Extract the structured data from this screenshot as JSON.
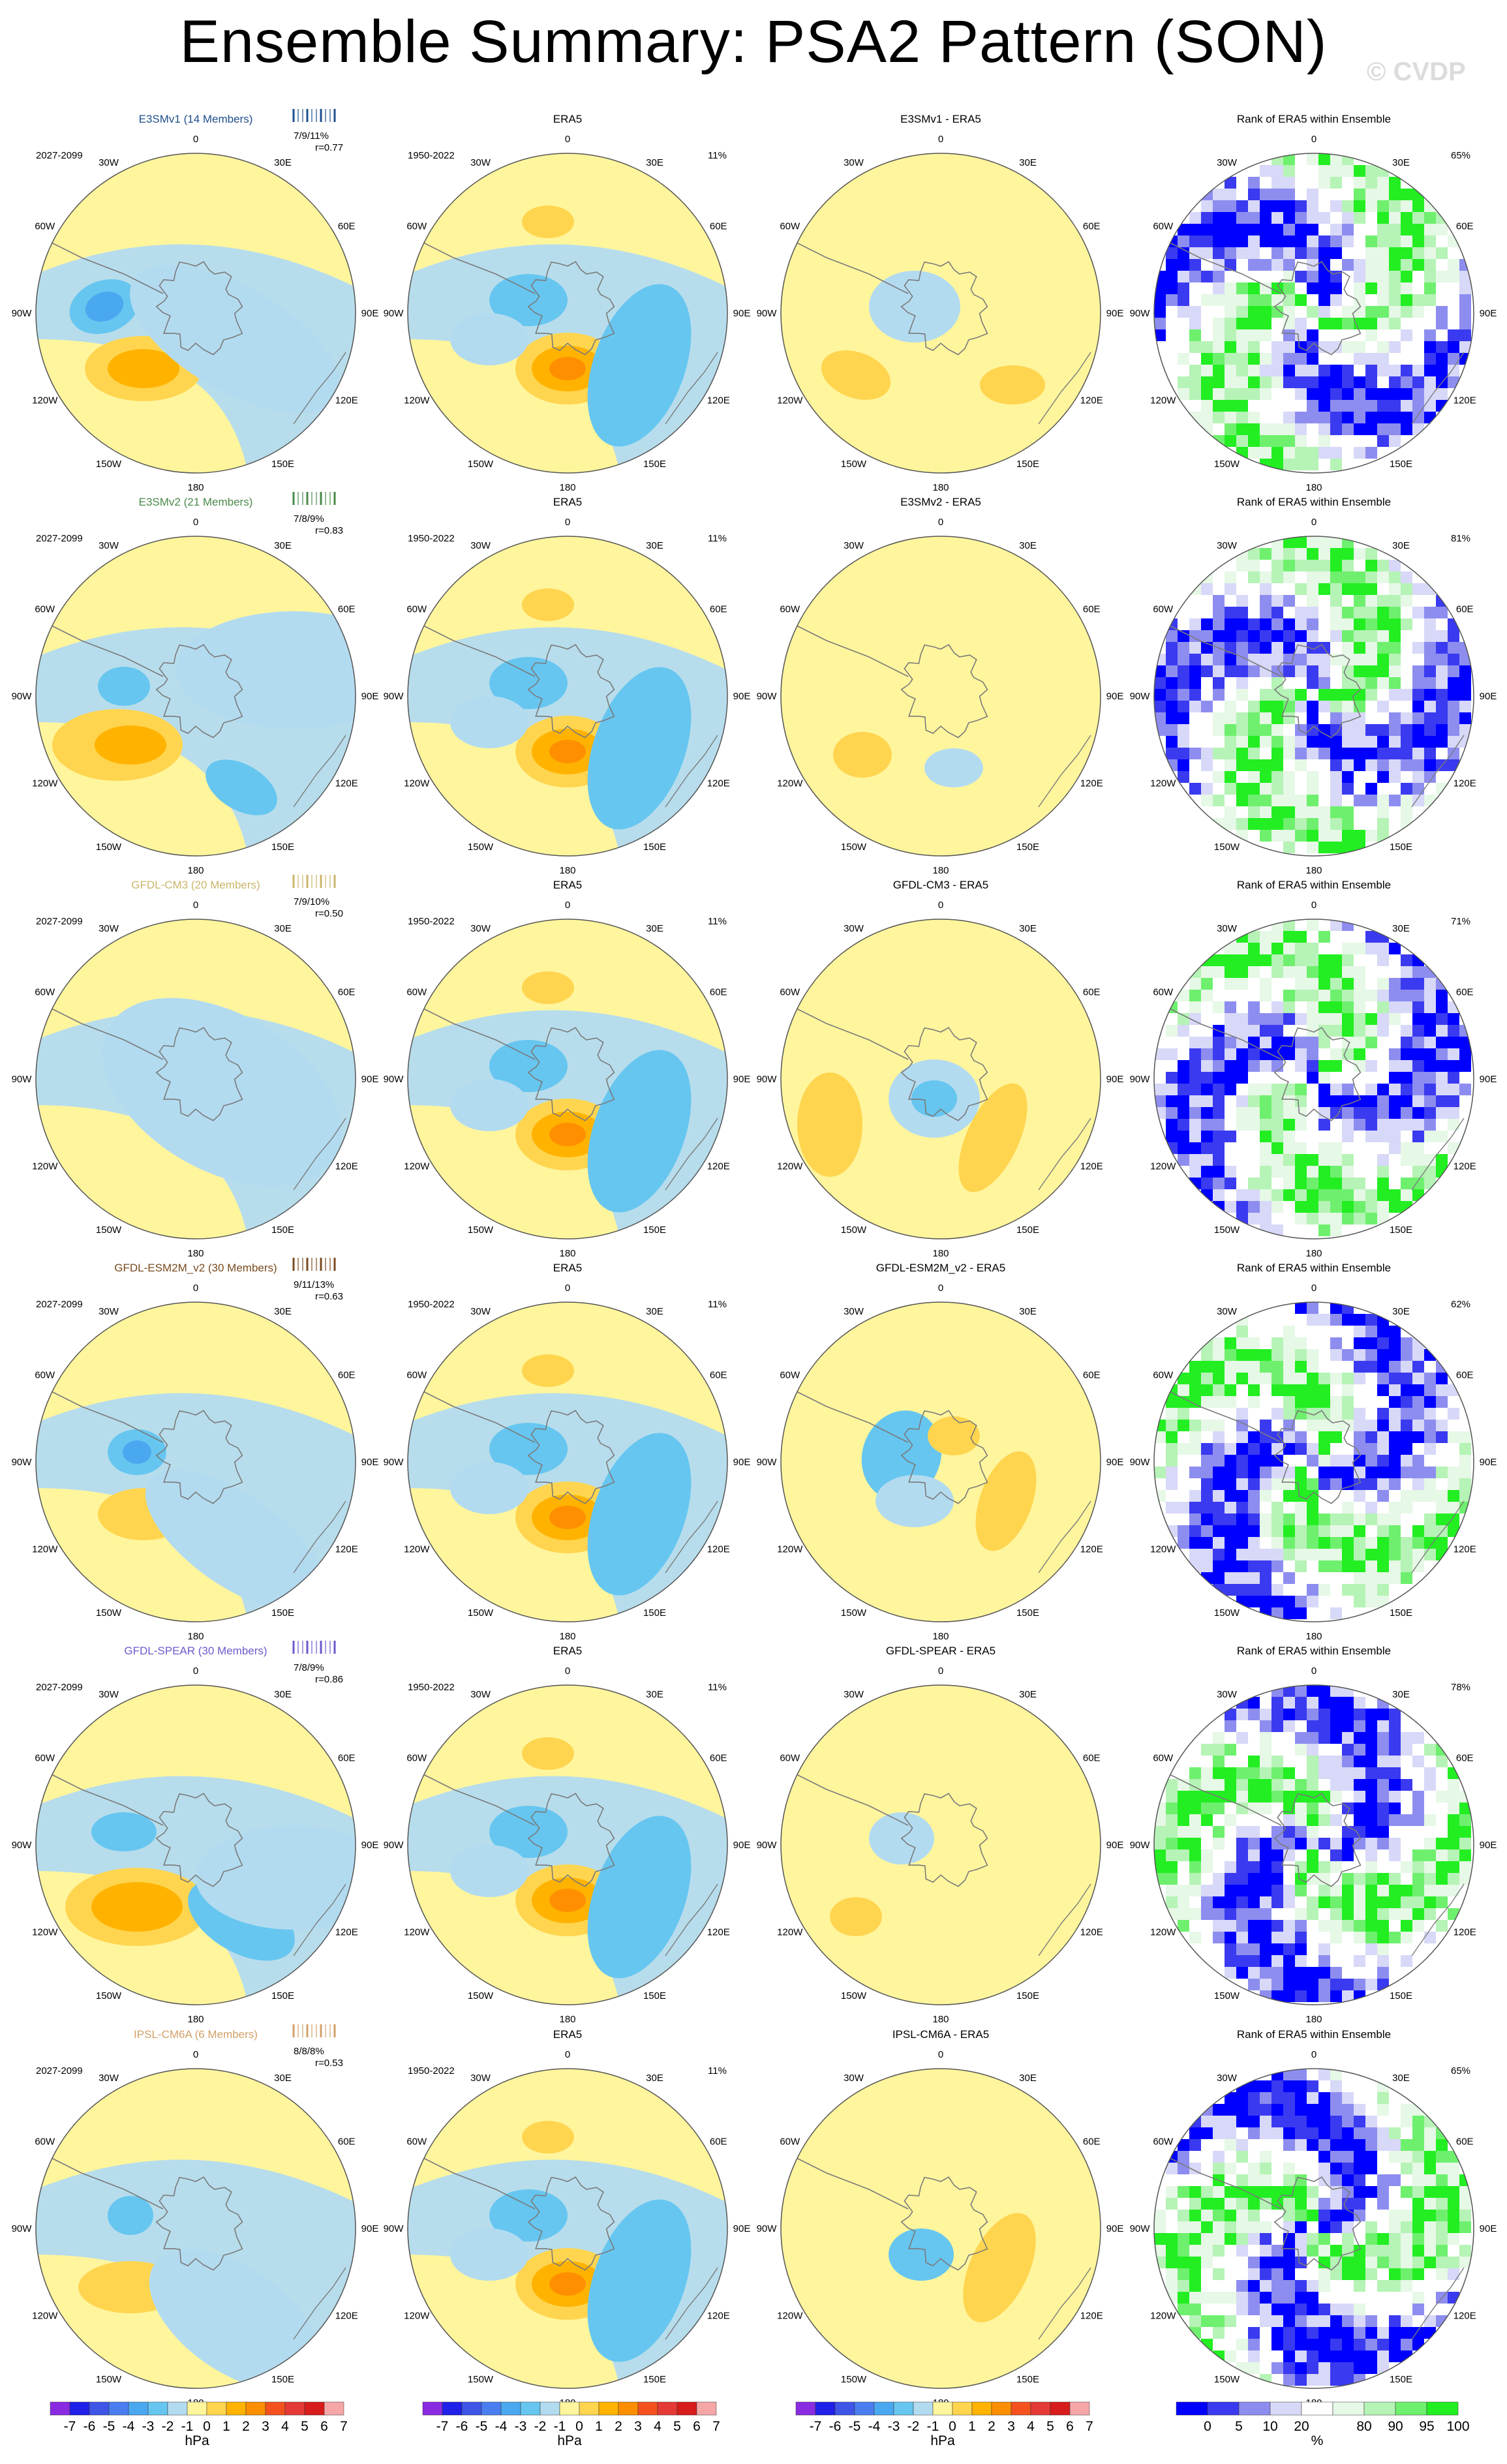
{
  "page": {
    "title": "Ensemble Summary: PSA2 Pattern (SON)",
    "credit": "© CVDP"
  },
  "colors": {
    "neg": [
      "#8a2be2",
      "#2020e8",
      "#3e55e8",
      "#4a7ef0",
      "#4aa8f0",
      "#66c6f0",
      "#b3dbf0"
    ],
    "pos": [
      "#fff59d",
      "#ffd54f",
      "#ffb300",
      "#ff8f00",
      "#f4511e",
      "#e53935",
      "#d81b1b",
      "#f5a6a6"
    ],
    "rank": [
      "#0000ff",
      "#3a3af0",
      "#8d8df0",
      "#d8d8f8",
      "#ffffff",
      "#e6f8e6",
      "#b6f3b6",
      "#6ef06e",
      "#22ee22"
    ],
    "rows": [
      "#1f4e8c",
      "#4a8a4a",
      "#cbb56a",
      "#7a4a1e",
      "#6a5acd",
      "#d2a06a"
    ]
  },
  "column_titles": [
    "ERA5",
    "Rank of ERA5 within Ensemble"
  ],
  "obs_years": "1950-2022",
  "obs_pct": "11%",
  "model_years": "2027-2099",
  "map_labels": {
    "lon": [
      "0",
      "30E",
      "60E",
      "90E",
      "120E",
      "150E",
      "180",
      "150W",
      "120W",
      "90W",
      "60W",
      "30W"
    ]
  },
  "rows": [
    {
      "model": "E3SMv1 (14 Members)",
      "diff_title": "E3SMv1 - ERA5",
      "pcts": "7/9/11%",
      "r": "r=0.77",
      "rank_pct": "65%"
    },
    {
      "model": "E3SMv2 (21 Members)",
      "diff_title": "E3SMv2 - ERA5",
      "pcts": "7/8/9%",
      "r": "r=0.83",
      "rank_pct": "81%"
    },
    {
      "model": "GFDL-CM3 (20 Members)",
      "diff_title": "GFDL-CM3 - ERA5",
      "pcts": "7/9/10%",
      "r": "r=0.50",
      "rank_pct": "71%"
    },
    {
      "model": "GFDL-ESM2M_v2 (30 Members)",
      "diff_title": "GFDL-ESM2M_v2 - ERA5",
      "pcts": "9/11/13%",
      "r": "r=0.63",
      "rank_pct": "62%"
    },
    {
      "model": "GFDL-SPEAR (30 Members)",
      "diff_title": "GFDL-SPEAR - ERA5",
      "pcts": "7/8/9%",
      "r": "r=0.86",
      "rank_pct": "78%"
    },
    {
      "model": "IPSL-CM6A (6 Members)",
      "diff_title": "IPSL-CM6A - ERA5",
      "pcts": "8/8/8%",
      "r": "r=0.53",
      "rank_pct": "65%"
    }
  ],
  "colorbars": {
    "hpa_ticks": [
      "-7",
      "-6",
      "-5",
      "-4",
      "-3",
      "-2",
      "-1",
      "0",
      "1",
      "2",
      "3",
      "4",
      "5",
      "6",
      "7"
    ],
    "hpa_unit": "hPa",
    "rank_ticks": [
      "0",
      "5",
      "10",
      "20",
      "80",
      "90",
      "95",
      "100"
    ],
    "rank_unit": "%"
  },
  "chart_data": {
    "type": "heatmap",
    "title": "Ensemble Summary: PSA2 Pattern (SON)",
    "projection": "south polar stereographic",
    "variable": "PSA2 pattern regression",
    "units": "hPa",
    "contour_levels": [
      -7,
      -6,
      -5,
      -4,
      -3,
      -2,
      -1,
      0,
      1,
      2,
      3,
      4,
      5,
      6,
      7
    ],
    "rank_levels_percent": [
      0,
      5,
      10,
      20,
      80,
      90,
      95,
      100
    ],
    "observations": {
      "name": "ERA5",
      "years": "1950-2022",
      "pct_variance": 11
    },
    "models": [
      {
        "name": "E3SMv1",
        "members": 14,
        "years": "2027-2099",
        "pct_variance": [
          7,
          9,
          11
        ],
        "pattern_corr": 0.77,
        "rank_area_pct": 65
      },
      {
        "name": "E3SMv2",
        "members": 21,
        "years": "2027-2099",
        "pct_variance": [
          7,
          8,
          9
        ],
        "pattern_corr": 0.83,
        "rank_area_pct": 81
      },
      {
        "name": "GFDL-CM3",
        "members": 20,
        "years": "2027-2099",
        "pct_variance": [
          7,
          9,
          10
        ],
        "pattern_corr": 0.5,
        "rank_area_pct": 71
      },
      {
        "name": "GFDL-ESM2M_v2",
        "members": 30,
        "years": "2027-2099",
        "pct_variance": [
          9,
          11,
          13
        ],
        "pattern_corr": 0.63,
        "rank_area_pct": 62
      },
      {
        "name": "GFDL-SPEAR",
        "members": 30,
        "years": "2027-2099",
        "pct_variance": [
          7,
          8,
          9
        ],
        "pattern_corr": 0.86,
        "rank_area_pct": 78
      },
      {
        "name": "IPSL-CM6A",
        "members": 6,
        "years": "2027-2099",
        "pct_variance": [
          8,
          8,
          8
        ],
        "pattern_corr": 0.53,
        "rank_area_pct": 65
      }
    ]
  }
}
